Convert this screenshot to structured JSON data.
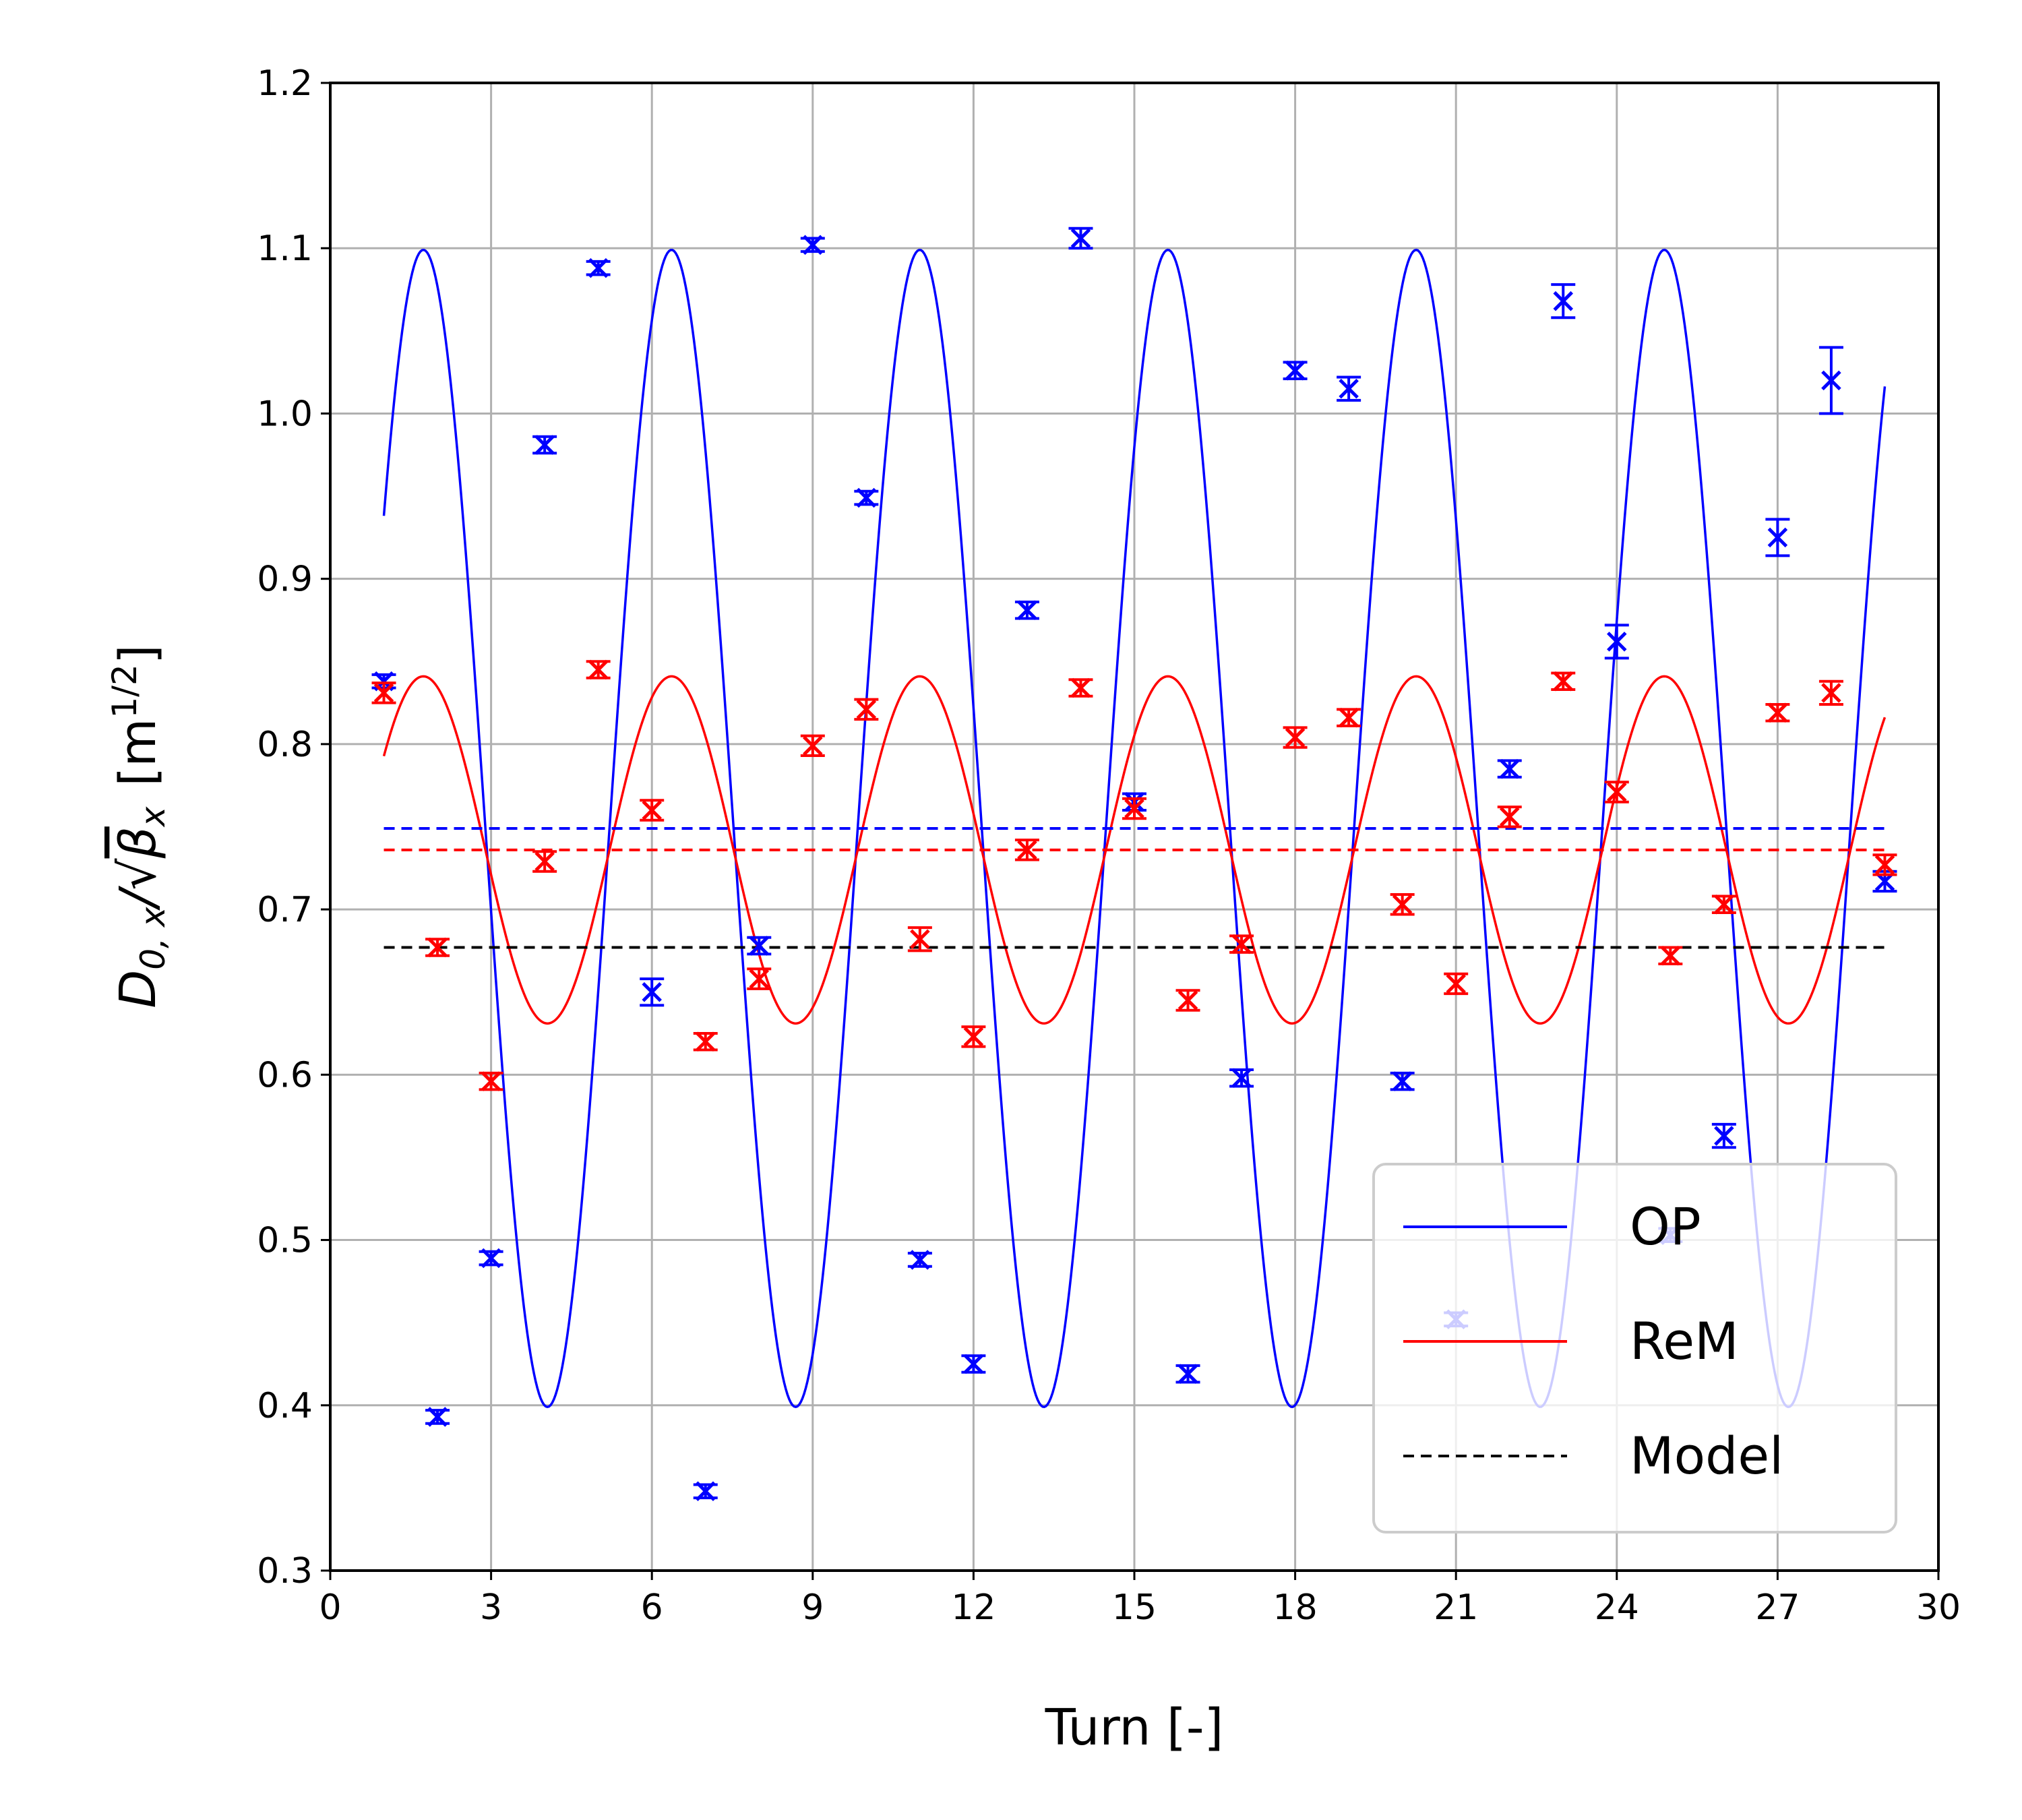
{
  "chart_data": {
    "type": "line",
    "xlabel": "Turn [-]",
    "ylabel_parts": {
      "D": "D",
      "sub1": "0, x",
      "slash": "/",
      "sqrt": "√",
      "beta": "β",
      "sub2": "x",
      "unit_open": "[m",
      "unit_exp": "1/2",
      "unit_close": "]"
    },
    "xlim": [
      0,
      30
    ],
    "ylim": [
      0.3,
      1.2
    ],
    "xticks": [
      0,
      3,
      6,
      9,
      12,
      15,
      18,
      21,
      24,
      27,
      30
    ],
    "yticks": [
      0.3,
      0.4,
      0.5,
      0.6,
      0.7,
      0.8,
      0.9,
      1.0,
      1.1,
      1.2
    ],
    "grid": true,
    "legend_position": "bottom-right",
    "series": [
      {
        "name": "OP",
        "color": "#0000ff",
        "x": [
          1,
          2,
          3,
          4,
          5,
          6,
          7,
          8,
          9,
          10,
          11,
          12,
          13,
          14,
          15,
          16,
          17,
          18,
          19,
          20,
          21,
          22,
          23,
          24,
          25,
          26,
          27,
          28,
          29
        ],
        "y": [
          0.838,
          0.393,
          0.489,
          0.981,
          1.088,
          0.65,
          0.348,
          0.678,
          1.102,
          0.949,
          0.488,
          0.425,
          0.881,
          1.106,
          0.765,
          0.419,
          0.598,
          1.026,
          1.015,
          0.596,
          0.452,
          0.785,
          1.068,
          0.862,
          0.503,
          0.563,
          0.925,
          1.02,
          0.717
        ],
        "err": [
          0.004,
          0.004,
          0.004,
          0.005,
          0.004,
          0.008,
          0.004,
          0.005,
          0.004,
          0.004,
          0.004,
          0.005,
          0.005,
          0.006,
          0.005,
          0.005,
          0.005,
          0.005,
          0.007,
          0.005,
          0.004,
          0.005,
          0.01,
          0.01,
          0.004,
          0.007,
          0.011,
          0.02,
          0.006
        ],
        "fit": {
          "mean": 0.749,
          "amplitude": 0.35,
          "period": 4.63,
          "phase_x": 1.0
        }
      },
      {
        "name": "ReM",
        "color": "#ff0000",
        "x": [
          1,
          2,
          3,
          4,
          5,
          6,
          7,
          8,
          9,
          10,
          11,
          12,
          13,
          14,
          15,
          16,
          17,
          18,
          19,
          20,
          21,
          22,
          23,
          24,
          25,
          26,
          27,
          28,
          29
        ],
        "y": [
          0.831,
          0.677,
          0.596,
          0.729,
          0.845,
          0.76,
          0.62,
          0.658,
          0.799,
          0.821,
          0.682,
          0.623,
          0.736,
          0.834,
          0.761,
          0.645,
          0.679,
          0.804,
          0.816,
          0.703,
          0.655,
          0.756,
          0.838,
          0.771,
          0.672,
          0.703,
          0.819,
          0.831,
          0.727
        ],
        "err": [
          0.006,
          0.005,
          0.005,
          0.006,
          0.005,
          0.006,
          0.005,
          0.006,
          0.006,
          0.006,
          0.007,
          0.006,
          0.006,
          0.005,
          0.006,
          0.006,
          0.005,
          0.006,
          0.005,
          0.006,
          0.006,
          0.006,
          0.005,
          0.006,
          0.005,
          0.005,
          0.005,
          0.007,
          0.006
        ],
        "fit": {
          "mean": 0.736,
          "amplitude": 0.105,
          "period": 4.63,
          "phase_x": 1.0
        }
      },
      {
        "name": "Model",
        "color": "#000000",
        "style": "dashed",
        "x": [
          1,
          29
        ],
        "y": [
          0.677,
          0.677
        ]
      }
    ],
    "horizontal_lines": [
      {
        "series": "OP",
        "y": 0.749,
        "color": "#0000ff",
        "style": "dashed"
      },
      {
        "series": "ReM",
        "y": 0.736,
        "color": "#ff0000",
        "style": "dashed"
      }
    ]
  }
}
